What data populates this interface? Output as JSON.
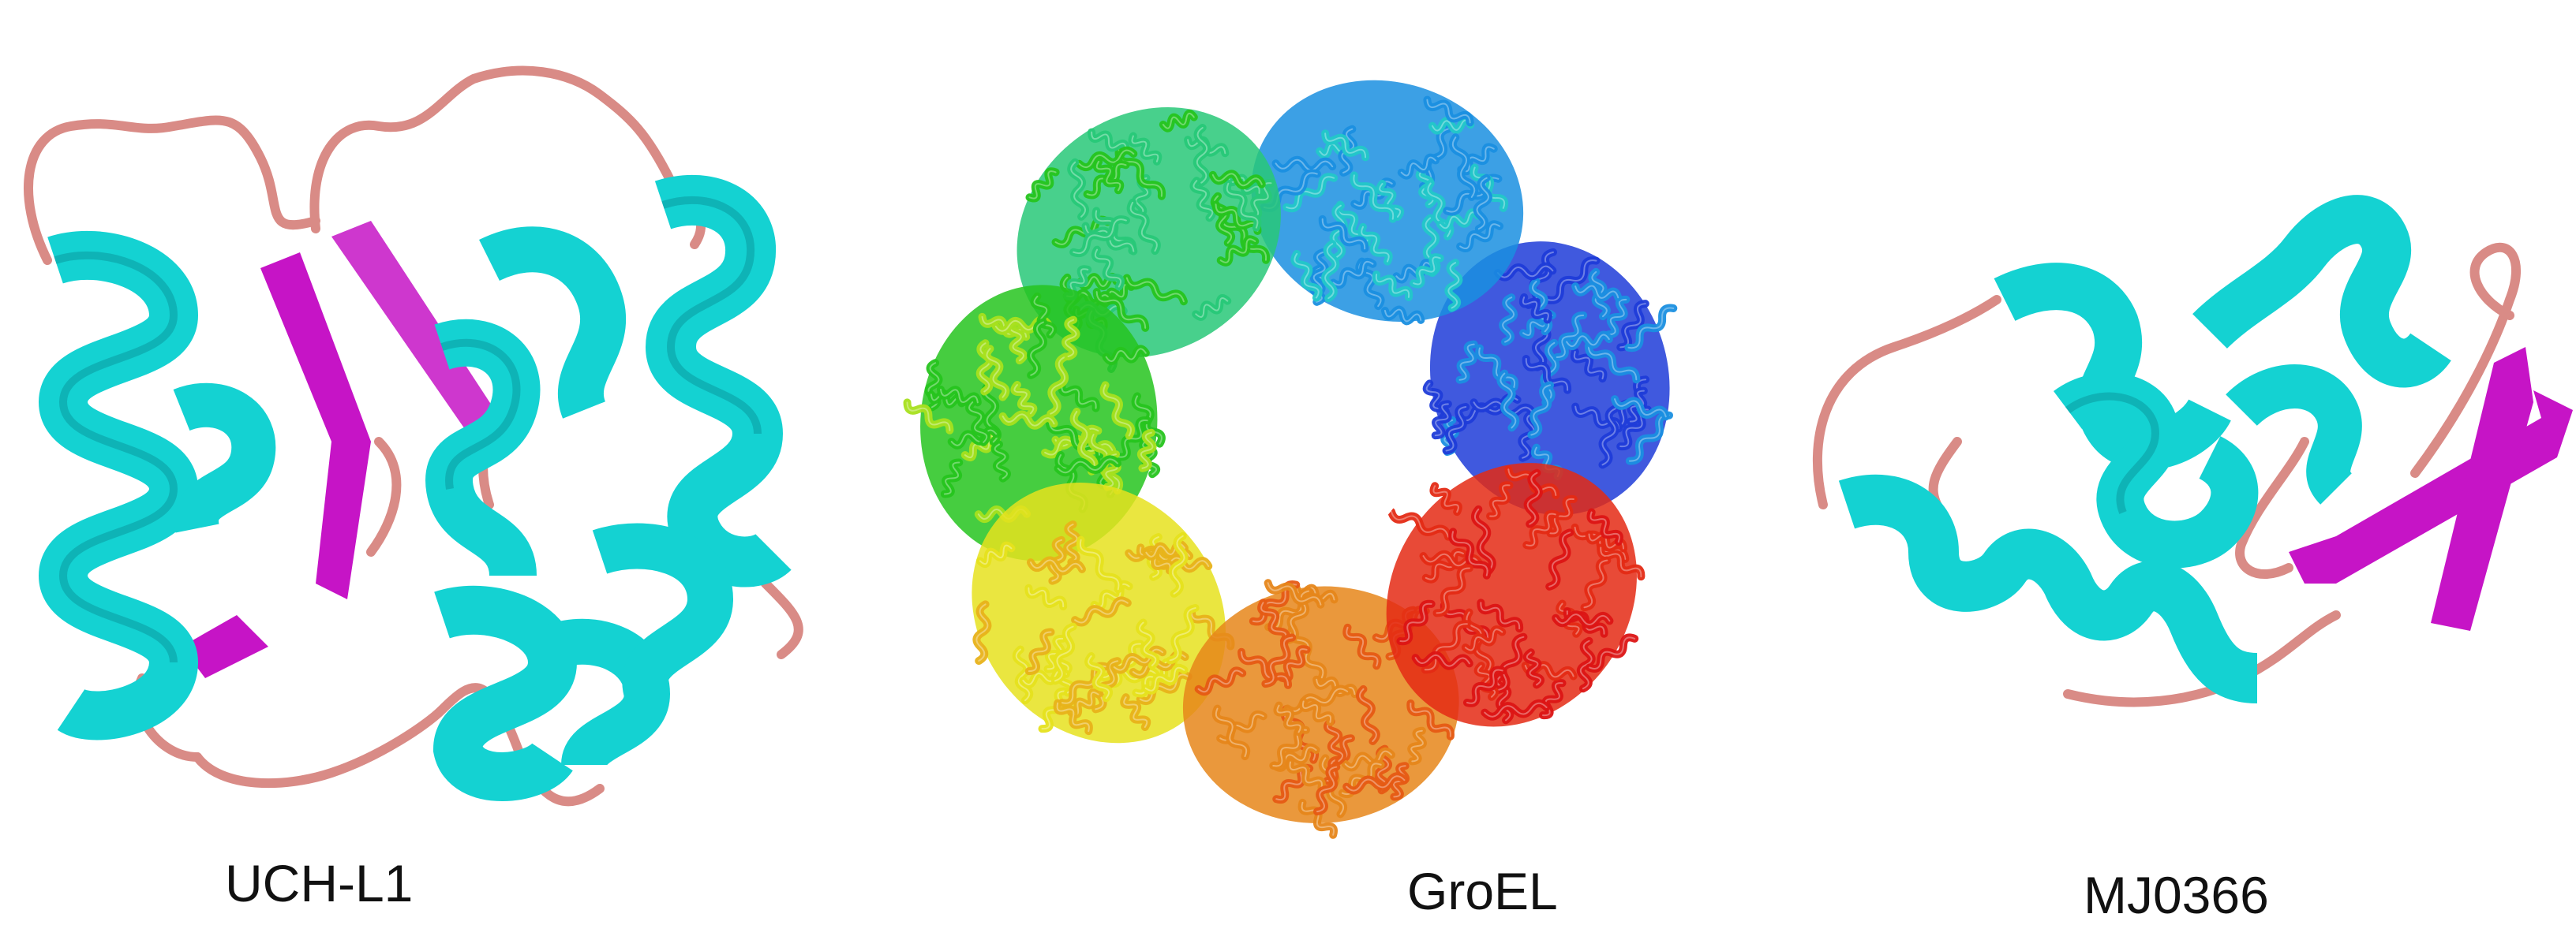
{
  "captions": {
    "uch": "UCH-L1",
    "groel": "GroEL",
    "mj": "MJ0366"
  },
  "colors": {
    "helix": "#14d2d2",
    "helix_dark": "#0a9ea4",
    "strand": "#c614c6",
    "loop": "#d98b86",
    "groel_rainbow": [
      "#1f3cd8",
      "#1a8fe0",
      "#22c8c8",
      "#28c878",
      "#26c41e",
      "#a8e01e",
      "#e6e21e",
      "#e8b21a",
      "#e6861a",
      "#e65a14",
      "#e42a14",
      "#dc1414"
    ]
  },
  "icons": {
    "uch": "protein-structure-uchl1-cartoon",
    "groel": "protein-structure-groel-ring",
    "mj": "protein-structure-mj0366-knot"
  }
}
